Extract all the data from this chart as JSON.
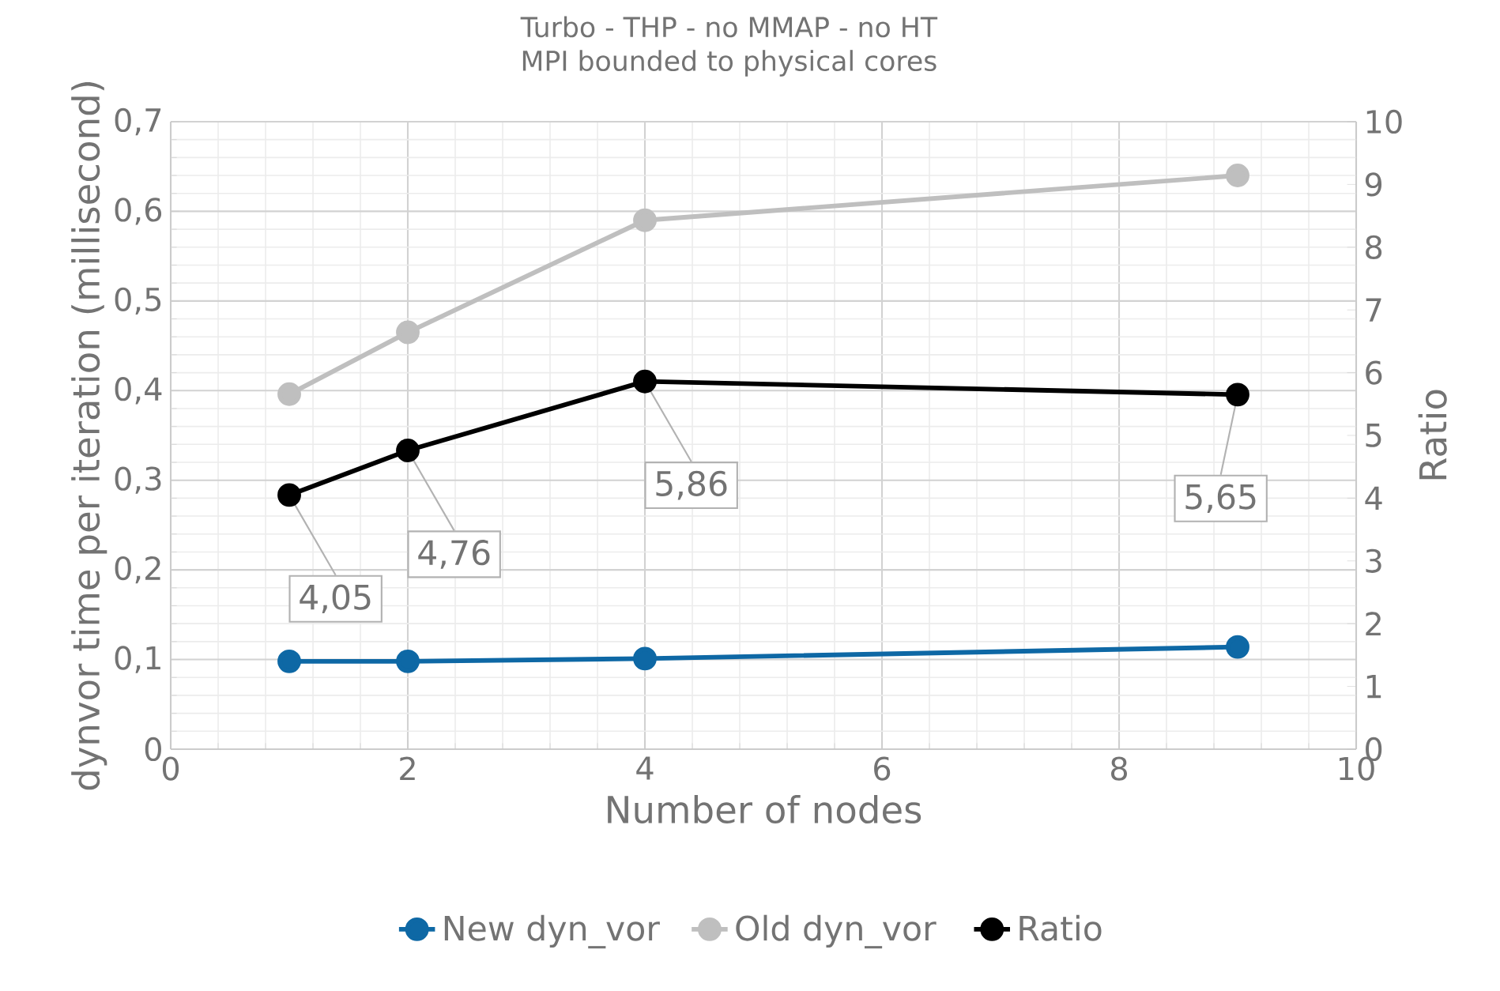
{
  "chart_data": {
    "type": "line",
    "title": "Turbo - THP -  no MMAP - no HT",
    "subtitle": "MPI bounded to physical cores",
    "xlabel": "Number of nodes",
    "ylabel": "dynvor time per iteration (millisecond)",
    "y2label": "Ratio",
    "x": [
      1,
      2,
      4,
      9
    ],
    "series": [
      {
        "name": "New dyn_vor",
        "color": "#0e68a5",
        "values": [
          0.098,
          0.098,
          0.101,
          0.114
        ]
      },
      {
        "name": "Old dyn_vor",
        "color": "#bfbfbf",
        "values": [
          0.396,
          0.465,
          0.59,
          0.64
        ]
      },
      {
        "name": "Ratio",
        "color": "#000000",
        "axis": "y2",
        "values": [
          4.05,
          4.76,
          5.86,
          5.65
        ],
        "value_labels": [
          "4,05",
          "4,76",
          "5,86",
          "5,65"
        ]
      }
    ],
    "xlim": [
      0,
      10
    ],
    "xticks": [
      0,
      2,
      4,
      6,
      8,
      10
    ],
    "ylim": [
      0,
      0.7
    ],
    "yticks": [
      0,
      {
        "value": 0.1,
        "label": "0,1"
      },
      {
        "value": 0.2,
        "label": "0,2"
      },
      {
        "value": 0.3,
        "label": "0,3"
      },
      {
        "value": 0.4,
        "label": "0,4"
      },
      {
        "value": 0.5,
        "label": "0,5"
      },
      {
        "value": 0.6,
        "label": "0,6"
      },
      {
        "value": 0.7,
        "label": "0,7"
      }
    ],
    "y2lim": [
      0,
      10
    ],
    "y2ticks": [
      0,
      1,
      2,
      3,
      4,
      5,
      6,
      7,
      8,
      9,
      10
    ],
    "grid": true,
    "legend": "bottom",
    "marker": "circle",
    "line_style": "solid"
  }
}
